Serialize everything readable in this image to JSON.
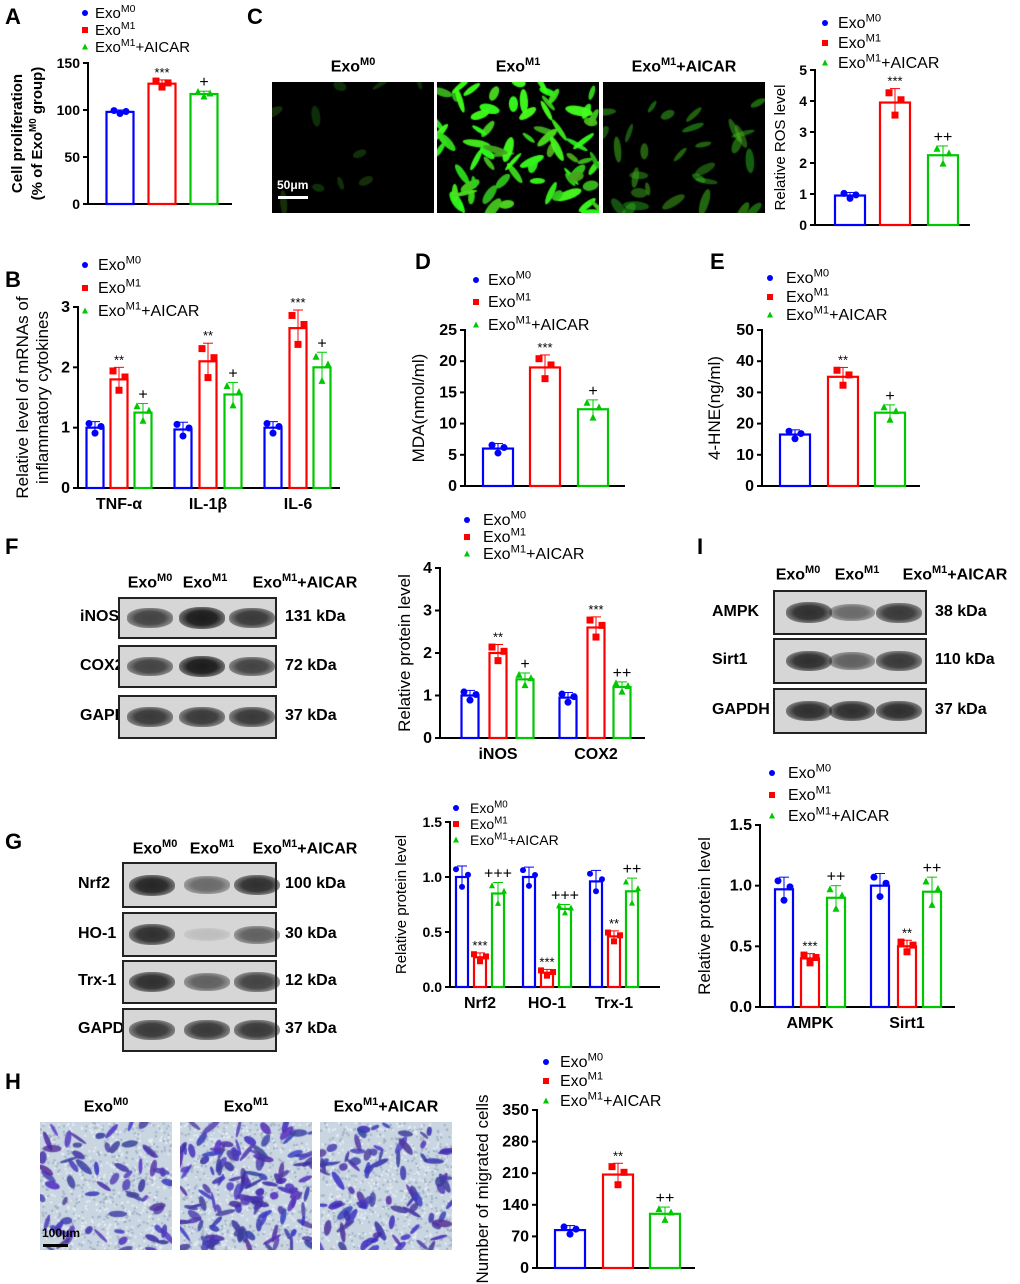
{
  "colors": {
    "m0": "#0000ff",
    "m1": "#ff0000",
    "aicar": "#00c800"
  },
  "groups": [
    {
      "base": "Exo",
      "sup": "M0",
      "suffix": ""
    },
    {
      "base": "Exo",
      "sup": "M1",
      "suffix": ""
    },
    {
      "base": "Exo",
      "sup": "M1",
      "suffix": "+AICAR"
    }
  ],
  "panel_letters": {
    "A": "A",
    "B": "B",
    "C": "C",
    "D": "D",
    "E": "E",
    "F": "F",
    "G": "G",
    "H": "H",
    "I": "I"
  },
  "images": {
    "C": {
      "labels": [
        {
          "base": "Exo",
          "sup": "M0",
          "suffix": ""
        },
        {
          "base": "Exo",
          "sup": "M1",
          "suffix": ""
        },
        {
          "base": "Exo",
          "sup": "M1",
          "suffix": "+AICAR"
        }
      ],
      "scale": "50μm",
      "cell_density": [
        0.05,
        1.0,
        0.35
      ]
    },
    "H": {
      "labels": [
        {
          "base": "Exo",
          "sup": "M0",
          "suffix": ""
        },
        {
          "base": "Exo",
          "sup": "M1",
          "suffix": ""
        },
        {
          "base": "Exo",
          "sup": "M1",
          "suffix": "+AICAR"
        }
      ],
      "scale": "100μm",
      "cell_density": [
        0.4,
        1.0,
        0.6
      ]
    }
  },
  "blots": {
    "F": {
      "lanes": [
        {
          "base": "Exo",
          "sup": "M0",
          "suffix": ""
        },
        {
          "base": "Exo",
          "sup": "M1",
          "suffix": ""
        },
        {
          "base": "Exo",
          "sup": "M1",
          "suffix": "+AICAR"
        }
      ],
      "rows": [
        {
          "label": "iNOS",
          "kda": "131 kDa",
          "intensity": [
            0.75,
            0.95,
            0.8
          ]
        },
        {
          "label": "COX2",
          "kda": "72 kDa",
          "intensity": [
            0.75,
            0.95,
            0.75
          ]
        },
        {
          "label": "GAPDH",
          "kda": "37 kDa",
          "intensity": [
            0.8,
            0.8,
            0.8
          ]
        }
      ]
    },
    "G": {
      "lanes": [
        {
          "base": "Exo",
          "sup": "M0",
          "suffix": ""
        },
        {
          "base": "Exo",
          "sup": "M1",
          "suffix": ""
        },
        {
          "base": "Exo",
          "sup": "M1",
          "suffix": "+AICAR"
        }
      ],
      "rows": [
        {
          "label": "Nrf2",
          "kda": "100 kDa",
          "intensity": [
            0.9,
            0.55,
            0.85
          ]
        },
        {
          "label": "HO-1",
          "kda": "30 kDa",
          "intensity": [
            0.85,
            0.12,
            0.6
          ]
        },
        {
          "label": "Trx-1",
          "kda": "12 kDa",
          "intensity": [
            0.85,
            0.6,
            0.75
          ]
        },
        {
          "label": "GAPDH",
          "kda": "37 kDa",
          "intensity": [
            0.8,
            0.8,
            0.8
          ]
        }
      ]
    },
    "I": {
      "lanes": [
        {
          "base": "Exo",
          "sup": "M0",
          "suffix": ""
        },
        {
          "base": "Exo",
          "sup": "M1",
          "suffix": ""
        },
        {
          "base": "Exo",
          "sup": "M1",
          "suffix": "+AICAR"
        }
      ],
      "rows": [
        {
          "label": "AMPK",
          "kda": "38 kDa",
          "intensity": [
            0.85,
            0.55,
            0.8
          ]
        },
        {
          "label": "Sirt1",
          "kda": "110 kDa",
          "intensity": [
            0.85,
            0.6,
            0.8
          ]
        },
        {
          "label": "GAPDH",
          "kda": "37 kDa",
          "intensity": [
            0.85,
            0.85,
            0.85
          ]
        }
      ]
    }
  },
  "chart_data": [
    {
      "id": "A",
      "type": "bar",
      "ylabel": [
        [
          {
            "t": "Cell proliferation"
          }
        ],
        [
          {
            "t": "(% of Exo"
          },
          {
            "t": "M0",
            "sup": true
          },
          {
            "t": " group)"
          }
        ]
      ],
      "ylim": [
        0,
        150
      ],
      "ticks": [
        0,
        50,
        100,
        150
      ],
      "tick_labels": [
        "0",
        "50",
        "100",
        "150"
      ],
      "categories": [
        ""
      ],
      "series": [
        {
          "name": "ExoM0",
          "values": [
            98
          ],
          "err": [
            2
          ],
          "sig": [
            ""
          ]
        },
        {
          "name": "ExoM1",
          "values": [
            128
          ],
          "err": [
            4
          ],
          "sig": [
            "***"
          ]
        },
        {
          "name": "ExoM1+AICAR",
          "values": [
            117
          ],
          "err": [
            3
          ],
          "sig": [
            "+"
          ]
        }
      ]
    },
    {
      "id": "C",
      "type": "bar",
      "ylabel": [
        [
          {
            "t": "Relative ROS level"
          }
        ]
      ],
      "ylim": [
        0,
        5
      ],
      "ticks": [
        0,
        1,
        2,
        3,
        4,
        5
      ],
      "tick_labels": [
        "0",
        "1",
        "2",
        "3",
        "4",
        "5"
      ],
      "categories": [
        ""
      ],
      "series": [
        {
          "name": "ExoM0",
          "values": [
            0.95
          ],
          "err": [
            0.1
          ],
          "sig": [
            ""
          ]
        },
        {
          "name": "ExoM1",
          "values": [
            3.95
          ],
          "err": [
            0.45
          ],
          "sig": [
            "***"
          ]
        },
        {
          "name": "ExoM1+AICAR",
          "values": [
            2.25
          ],
          "err": [
            0.3
          ],
          "sig": [
            "++"
          ]
        }
      ]
    },
    {
      "id": "B",
      "type": "bar",
      "ylabel": [
        [
          {
            "t": "Relative level of mRNAs of"
          }
        ],
        [
          {
            "t": "inflammatory cytokines"
          }
        ]
      ],
      "ylim": [
        0,
        3
      ],
      "ticks": [
        0,
        1,
        2,
        3
      ],
      "tick_labels": [
        "0",
        "1",
        "2",
        "3"
      ],
      "categories": [
        "TNF-α",
        "IL-1β",
        "IL-6"
      ],
      "series": [
        {
          "name": "ExoM0",
          "values": [
            1.0,
            0.97,
            1.0
          ],
          "err": [
            0.1,
            0.12,
            0.1
          ],
          "sig": [
            "",
            "",
            ""
          ]
        },
        {
          "name": "ExoM1",
          "values": [
            1.8,
            2.1,
            2.65
          ],
          "err": [
            0.2,
            0.3,
            0.3
          ],
          "sig": [
            "**",
            "**",
            "***"
          ]
        },
        {
          "name": "ExoM1+AICAR",
          "values": [
            1.25,
            1.55,
            2.0
          ],
          "err": [
            0.15,
            0.2,
            0.25
          ],
          "sig": [
            "+",
            "+",
            "+"
          ]
        }
      ]
    },
    {
      "id": "D",
      "type": "bar",
      "ylabel": [
        [
          {
            "t": "MDA(nmol/ml)"
          }
        ]
      ],
      "ylim": [
        0,
        25
      ],
      "ticks": [
        0,
        5,
        10,
        15,
        20,
        25
      ],
      "tick_labels": [
        "0",
        "5",
        "10",
        "15",
        "20",
        "25"
      ],
      "categories": [
        ""
      ],
      "series": [
        {
          "name": "ExoM0",
          "values": [
            6
          ],
          "err": [
            0.8
          ],
          "sig": [
            ""
          ]
        },
        {
          "name": "ExoM1",
          "values": [
            19
          ],
          "err": [
            2
          ],
          "sig": [
            "***"
          ]
        },
        {
          "name": "ExoM1+AICAR",
          "values": [
            12.3
          ],
          "err": [
            1.5
          ],
          "sig": [
            "+"
          ]
        }
      ]
    },
    {
      "id": "E",
      "type": "bar",
      "ylabel": [
        [
          {
            "t": "4-HNE(ng/ml)"
          }
        ]
      ],
      "ylim": [
        0,
        50
      ],
      "ticks": [
        0,
        10,
        20,
        30,
        40,
        50
      ],
      "tick_labels": [
        "0",
        "10",
        "20",
        "30",
        "40",
        "50"
      ],
      "categories": [
        ""
      ],
      "series": [
        {
          "name": "ExoM0",
          "values": [
            16.5
          ],
          "err": [
            1.5
          ],
          "sig": [
            ""
          ]
        },
        {
          "name": "ExoM1",
          "values": [
            35
          ],
          "err": [
            3
          ],
          "sig": [
            "**"
          ]
        },
        {
          "name": "ExoM1+AICAR",
          "values": [
            23.5
          ],
          "err": [
            2.5
          ],
          "sig": [
            "+"
          ]
        }
      ]
    },
    {
      "id": "F",
      "type": "bar",
      "ylabel": [
        [
          {
            "t": "Relative protein level"
          }
        ]
      ],
      "ylim": [
        0,
        4
      ],
      "ticks": [
        0,
        1,
        2,
        3,
        4
      ],
      "tick_labels": [
        "0",
        "1",
        "2",
        "3",
        "4"
      ],
      "categories": [
        "iNOS",
        "COX2"
      ],
      "series": [
        {
          "name": "ExoM0",
          "values": [
            1.0,
            0.95
          ],
          "err": [
            0.12,
            0.12
          ],
          "sig": [
            "",
            ""
          ]
        },
        {
          "name": "ExoM1",
          "values": [
            2.0,
            2.6
          ],
          "err": [
            0.2,
            0.25
          ],
          "sig": [
            "**",
            "***"
          ]
        },
        {
          "name": "ExoM1+AICAR",
          "values": [
            1.38,
            1.2
          ],
          "err": [
            0.15,
            0.12
          ],
          "sig": [
            "+",
            "++"
          ]
        }
      ]
    },
    {
      "id": "G",
      "type": "bar",
      "ylabel": [
        [
          {
            "t": "Relative protein level"
          }
        ]
      ],
      "ylim": [
        0,
        1.5
      ],
      "ticks": [
        0,
        0.5,
        1.0,
        1.5
      ],
      "tick_labels": [
        "0.0",
        "0.5",
        "1.0",
        "1.5"
      ],
      "categories": [
        "Nrf2",
        "HO-1",
        "Trx-1"
      ],
      "series": [
        {
          "name": "ExoM0",
          "values": [
            1.0,
            1.0,
            0.96
          ],
          "err": [
            0.1,
            0.09,
            0.1
          ],
          "sig": [
            "",
            "",
            ""
          ]
        },
        {
          "name": "ExoM1",
          "values": [
            0.27,
            0.13,
            0.46
          ],
          "err": [
            0.04,
            0.03,
            0.05
          ],
          "sig": [
            "***",
            "***",
            "**"
          ]
        },
        {
          "name": "ExoM1+AICAR",
          "values": [
            0.85,
            0.71,
            0.87
          ],
          "err": [
            0.1,
            0.04,
            0.12
          ],
          "sig": [
            "+++",
            "+++",
            "++"
          ]
        }
      ]
    },
    {
      "id": "I",
      "type": "bar",
      "ylabel": [
        [
          {
            "t": "Relative protein level"
          }
        ]
      ],
      "ylim": [
        0,
        1.5
      ],
      "ticks": [
        0,
        0.5,
        1.0,
        1.5
      ],
      "tick_labels": [
        "0.0",
        "0.5",
        "1.0",
        "1.5"
      ],
      "categories": [
        "AMPK",
        "Sirt1"
      ],
      "series": [
        {
          "name": "ExoM0",
          "values": [
            0.97,
            1.0
          ],
          "err": [
            0.1,
            0.1
          ],
          "sig": [
            "",
            ""
          ]
        },
        {
          "name": "ExoM1",
          "values": [
            0.4,
            0.5
          ],
          "err": [
            0.04,
            0.05
          ],
          "sig": [
            "***",
            "**"
          ]
        },
        {
          "name": "ExoM1+AICAR",
          "values": [
            0.9,
            0.95
          ],
          "err": [
            0.1,
            0.12
          ],
          "sig": [
            "++",
            "++"
          ]
        }
      ]
    },
    {
      "id": "H",
      "type": "bar",
      "ylabel": [
        [
          {
            "t": "Number of migrated cells"
          }
        ]
      ],
      "ylim": [
        0,
        350
      ],
      "ticks": [
        0,
        70,
        140,
        210,
        280,
        350
      ],
      "tick_labels": [
        "0",
        "70",
        "140",
        "210",
        "280",
        "350"
      ],
      "categories": [
        ""
      ],
      "series": [
        {
          "name": "ExoM0",
          "values": [
            84
          ],
          "err": [
            10
          ],
          "sig": [
            ""
          ]
        },
        {
          "name": "ExoM1",
          "values": [
            207
          ],
          "err": [
            25
          ],
          "sig": [
            "**"
          ]
        },
        {
          "name": "ExoM1+AICAR",
          "values": [
            120
          ],
          "err": [
            15
          ],
          "sig": [
            "++"
          ]
        }
      ]
    }
  ]
}
